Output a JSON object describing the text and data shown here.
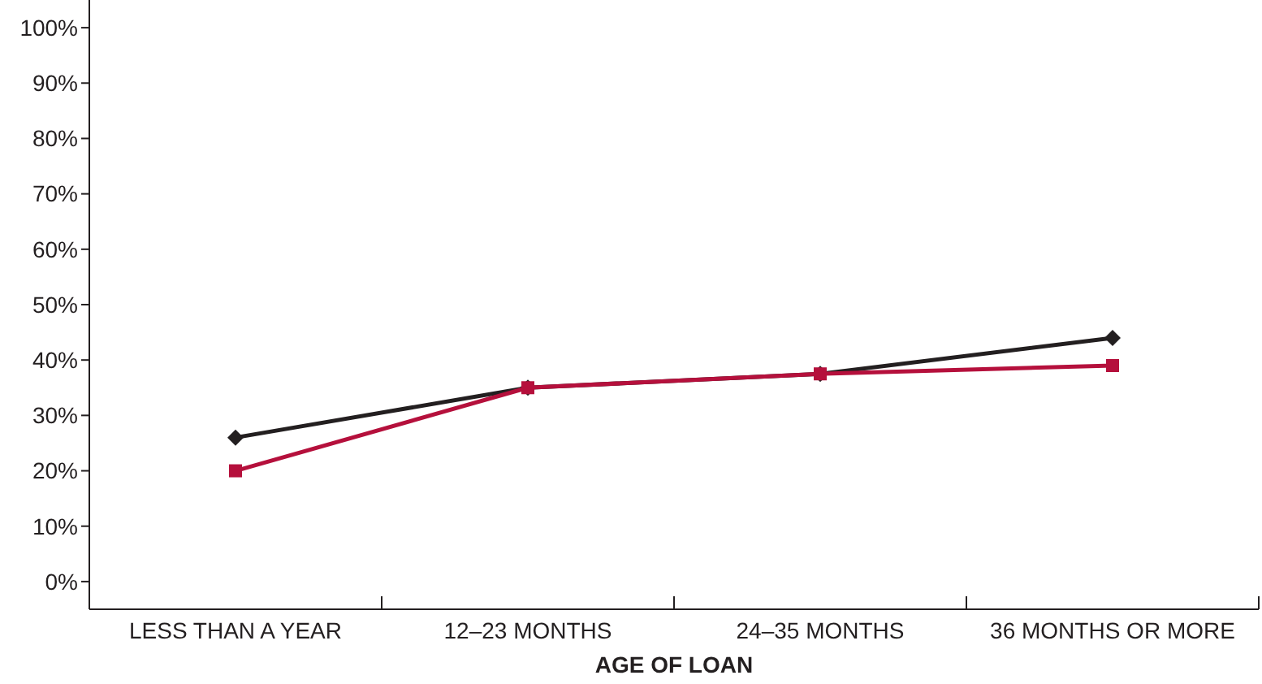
{
  "chart_data": {
    "type": "line",
    "xlabel": "AGE OF LOAN",
    "categories": [
      "LESS THAN A YEAR",
      "12–23 MONTHS",
      "24–35 MONTHS",
      "36 MONTHS OR MORE"
    ],
    "series": [
      {
        "color": "#231f20",
        "values": [
          26,
          35,
          37.5,
          44
        ],
        "marker": "diamond"
      },
      {
        "color": "#b5103c",
        "values": [
          20,
          35,
          37.5,
          39
        ],
        "marker": "square"
      }
    ],
    "ylim": [
      -5,
      105
    ],
    "yticks": [
      {
        "value": 0,
        "label": "0%"
      },
      {
        "value": 10,
        "label": "10%"
      },
      {
        "value": 20,
        "label": "20%"
      },
      {
        "value": 30,
        "label": "30%"
      },
      {
        "value": 40,
        "label": "40%"
      },
      {
        "value": 50,
        "label": "50%"
      },
      {
        "value": 60,
        "label": "60%"
      },
      {
        "value": 70,
        "label": "70%"
      },
      {
        "value": 80,
        "label": "80%"
      },
      {
        "value": 90,
        "label": "90%"
      },
      {
        "value": 100,
        "label": "100%"
      }
    ],
    "grid": false
  }
}
